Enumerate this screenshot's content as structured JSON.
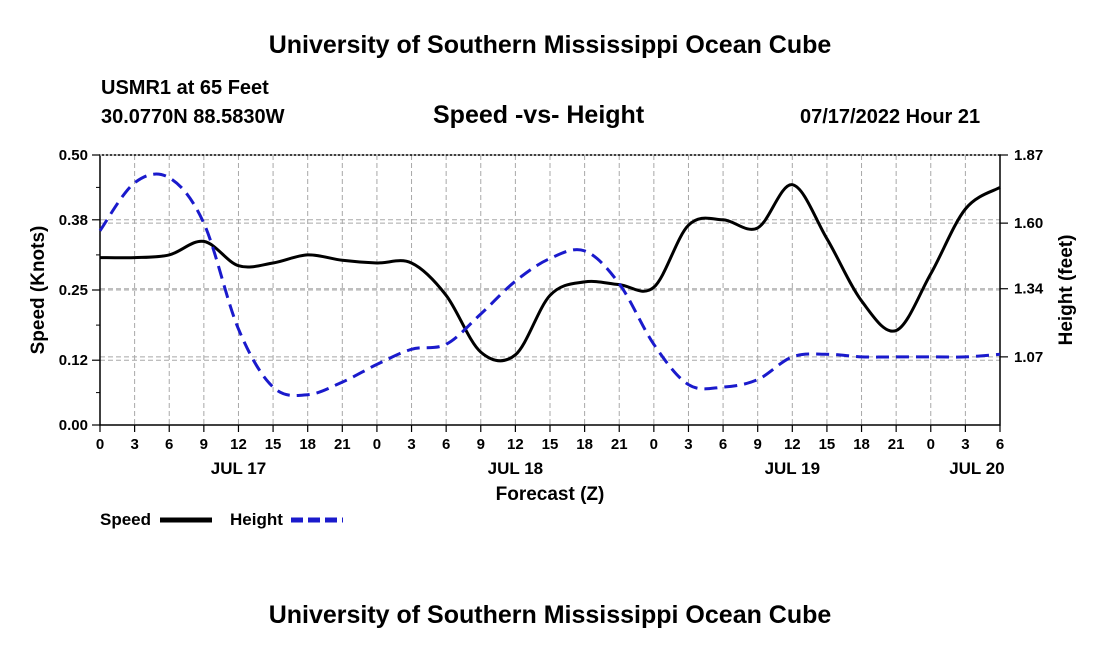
{
  "header": {
    "title": "University of Southern Mississippi Ocean Cube",
    "station": "USMR1 at 65 Feet",
    "coords": "30.0770N  88.5830W",
    "subtitle": "Speed -vs- Height",
    "datetime": "07/17/2022 Hour 21"
  },
  "footer": {
    "title": "University of Southern Mississippi Ocean Cube"
  },
  "colors": {
    "speed": "#000000",
    "height": "#1a1acc",
    "grid": "#a8a8a8"
  },
  "chart_data": {
    "type": "line",
    "xlabel": "Forecast (Z)",
    "ylabel": "Speed (Knots)",
    "ylabel_right": "Height (feet)",
    "x_range": [
      0,
      78
    ],
    "ylim": [
      0,
      0.5
    ],
    "ylim_right": [
      0.8,
      1.87
    ],
    "y_ticks": [
      "0.00",
      "0.12",
      "0.25",
      "0.38",
      "0.50"
    ],
    "y_ticks_right": [
      "1.07",
      "1.34",
      "1.60",
      "1.87"
    ],
    "x_tick_labels": [
      "0",
      "3",
      "6",
      "9",
      "12",
      "15",
      "18",
      "21",
      "0",
      "3",
      "6",
      "9",
      "12",
      "15",
      "18",
      "21",
      "0",
      "3",
      "6",
      "9",
      "12",
      "15",
      "18",
      "21",
      "0",
      "3",
      "6"
    ],
    "date_labels": [
      {
        "label": "JUL 17",
        "x": 12
      },
      {
        "label": "JUL 18",
        "x": 36
      },
      {
        "label": "JUL 19",
        "x": 60
      },
      {
        "label": "JUL 20",
        "x": 76
      }
    ],
    "series": [
      {
        "name": "Speed",
        "axis": "left",
        "style": "solid",
        "x": [
          0,
          3,
          6,
          9,
          12,
          15,
          18,
          21,
          24,
          27,
          30,
          33,
          36,
          39,
          42,
          45,
          48,
          51,
          54,
          57,
          60,
          63,
          66,
          69,
          72,
          75,
          78
        ],
        "values": [
          0.31,
          0.31,
          0.315,
          0.34,
          0.295,
          0.3,
          0.315,
          0.305,
          0.3,
          0.3,
          0.24,
          0.135,
          0.13,
          0.24,
          0.265,
          0.26,
          0.255,
          0.37,
          0.38,
          0.365,
          0.445,
          0.345,
          0.23,
          0.175,
          0.28,
          0.4,
          0.44
        ]
      },
      {
        "name": "Height",
        "axis": "right",
        "style": "dashed",
        "x": [
          0,
          3,
          6,
          9,
          12,
          15,
          18,
          21,
          24,
          27,
          30,
          33,
          36,
          39,
          42,
          45,
          48,
          51,
          54,
          57,
          60,
          63,
          66,
          69,
          72,
          75,
          78
        ],
        "values": [
          1.57,
          1.76,
          1.78,
          1.6,
          1.18,
          0.95,
          0.92,
          0.97,
          1.04,
          1.1,
          1.12,
          1.24,
          1.37,
          1.46,
          1.49,
          1.36,
          1.12,
          0.96,
          0.95,
          0.98,
          1.07,
          1.08,
          1.07,
          1.07,
          1.07,
          1.07,
          1.08
        ]
      }
    ],
    "legend": [
      {
        "label": "Speed",
        "series": "Speed"
      },
      {
        "label": "Height",
        "series": "Height"
      }
    ]
  }
}
